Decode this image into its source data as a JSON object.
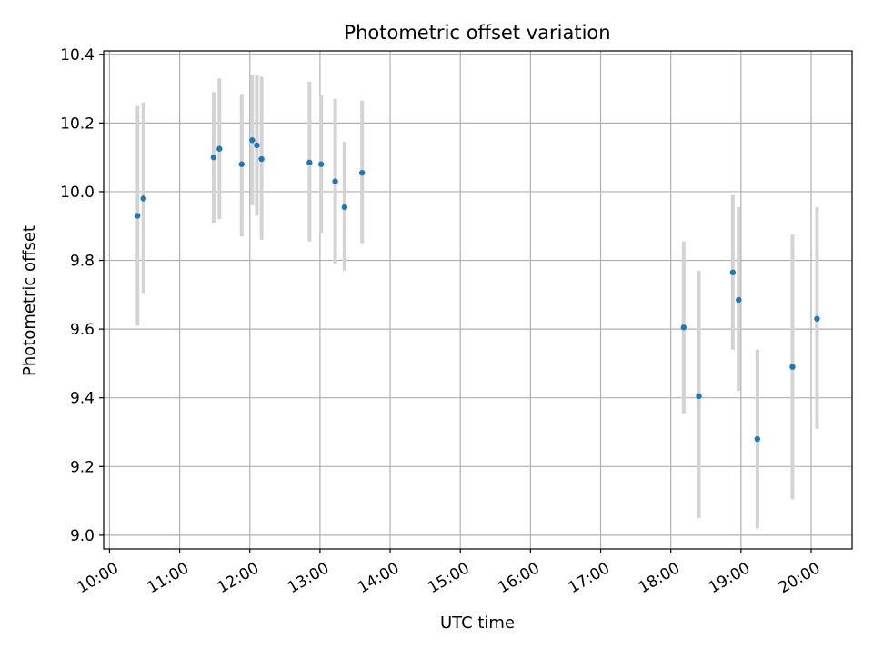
{
  "chart_data": {
    "type": "scatter",
    "title": "Photometric offset variation",
    "xlabel": "UTC time",
    "ylabel": "Photometric offset",
    "xlim": [
      "09:55",
      "20:35"
    ],
    "ylim": [
      8.96,
      10.41
    ],
    "grid": true,
    "x_ticks": [
      "10:00",
      "11:00",
      "12:00",
      "13:00",
      "14:00",
      "15:00",
      "16:00",
      "17:00",
      "18:00",
      "19:00",
      "20:00"
    ],
    "y_ticks": [
      "9.0",
      "9.2",
      "9.4",
      "9.6",
      "9.8",
      "10.0",
      "10.2",
      "10.4"
    ],
    "marker_color": "#1f77b4",
    "errorbar_color": "#d3d3d3",
    "points": [
      {
        "x": "10:24",
        "y": 9.93,
        "ylo": 9.61,
        "yhi": 10.25
      },
      {
        "x": "10:29",
        "y": 9.98,
        "ylo": 9.705,
        "yhi": 10.26
      },
      {
        "x": "11:29",
        "y": 10.1,
        "ylo": 9.91,
        "yhi": 10.29
      },
      {
        "x": "11:34",
        "y": 10.125,
        "ylo": 9.92,
        "yhi": 10.33
      },
      {
        "x": "11:53",
        "y": 10.08,
        "ylo": 9.87,
        "yhi": 10.285
      },
      {
        "x": "12:02",
        "y": 10.15,
        "ylo": 9.96,
        "yhi": 10.34
      },
      {
        "x": "12:06",
        "y": 10.135,
        "ylo": 9.93,
        "yhi": 10.34
      },
      {
        "x": "12:10",
        "y": 10.095,
        "ylo": 9.86,
        "yhi": 10.335
      },
      {
        "x": "12:51",
        "y": 10.085,
        "ylo": 9.855,
        "yhi": 10.32
      },
      {
        "x": "13:01",
        "y": 10.08,
        "ylo": 9.88,
        "yhi": 10.28
      },
      {
        "x": "13:13",
        "y": 10.03,
        "ylo": 9.79,
        "yhi": 10.27
      },
      {
        "x": "13:21",
        "y": 9.955,
        "ylo": 9.77,
        "yhi": 10.145
      },
      {
        "x": "13:36",
        "y": 10.055,
        "ylo": 9.85,
        "yhi": 10.265
      },
      {
        "x": "18:11",
        "y": 9.605,
        "ylo": 9.355,
        "yhi": 9.855
      },
      {
        "x": "18:24",
        "y": 9.405,
        "ylo": 9.05,
        "yhi": 9.77
      },
      {
        "x": "18:53",
        "y": 9.765,
        "ylo": 9.54,
        "yhi": 9.99
      },
      {
        "x": "18:58",
        "y": 9.685,
        "ylo": 9.42,
        "yhi": 9.955
      },
      {
        "x": "19:14",
        "y": 9.28,
        "ylo": 9.02,
        "yhi": 9.54
      },
      {
        "x": "19:44",
        "y": 9.49,
        "ylo": 9.105,
        "yhi": 9.875
      },
      {
        "x": "20:05",
        "y": 9.63,
        "ylo": 9.31,
        "yhi": 9.955
      }
    ]
  }
}
